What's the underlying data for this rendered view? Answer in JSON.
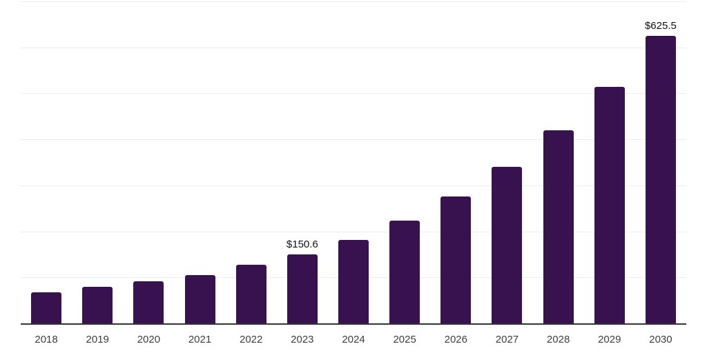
{
  "chart_data": {
    "type": "bar",
    "title": "",
    "xlabel": "",
    "ylabel": "",
    "categories": [
      "2018",
      "2019",
      "2020",
      "2021",
      "2022",
      "2023",
      "2024",
      "2025",
      "2026",
      "2027",
      "2028",
      "2029",
      "2030"
    ],
    "values": [
      67,
      79,
      91,
      105,
      127,
      150.6,
      182,
      224,
      276,
      341,
      420,
      514,
      625.5
    ],
    "data_labels": {
      "2023": "$150.6",
      "2030": "$625.5"
    },
    "ylim": [
      0,
      700
    ],
    "gridline_step": 100,
    "grid": true,
    "legend": false,
    "y_tick_labels_visible": false,
    "colors": {
      "bar": "#38124E",
      "grid": "#ededed",
      "axis": "#333333",
      "tick_label": "#3d3d3d",
      "data_label": "#111111",
      "background": "#ffffff"
    }
  }
}
